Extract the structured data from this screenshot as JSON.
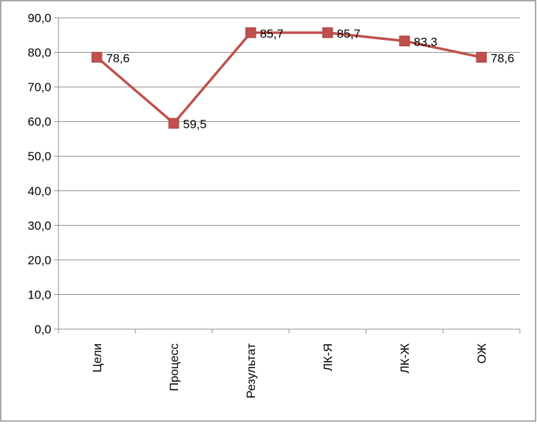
{
  "chart_data": {
    "type": "line",
    "title": "",
    "xlabel": "",
    "ylabel": "",
    "categories": [
      "Цели",
      "Процесс",
      "Результат",
      "ЛК-Я",
      "ЛК-Ж",
      "ОЖ"
    ],
    "series": [
      {
        "values": [
          78.6,
          59.5,
          85.7,
          85.7,
          83.3,
          78.6
        ],
        "labels": [
          "78,6",
          "59,5",
          "85,7",
          "85,7",
          "83,3",
          "78,6"
        ],
        "color": "#c0504d",
        "marker": "square"
      }
    ],
    "ylim": [
      0,
      90
    ],
    "y_ticks": [
      0,
      10,
      20,
      30,
      40,
      50,
      60,
      70,
      80,
      90
    ],
    "y_tick_labels": [
      "0,0",
      "10,0",
      "20,0",
      "30,0",
      "40,0",
      "50,0",
      "60,0",
      "70,0",
      "80,0",
      "90,0"
    ],
    "grid": true,
    "legend": "none",
    "colors": {
      "gridline": "#8c8c8c",
      "axis": "#8c8c8c",
      "frame": "#8c8c8c"
    }
  }
}
